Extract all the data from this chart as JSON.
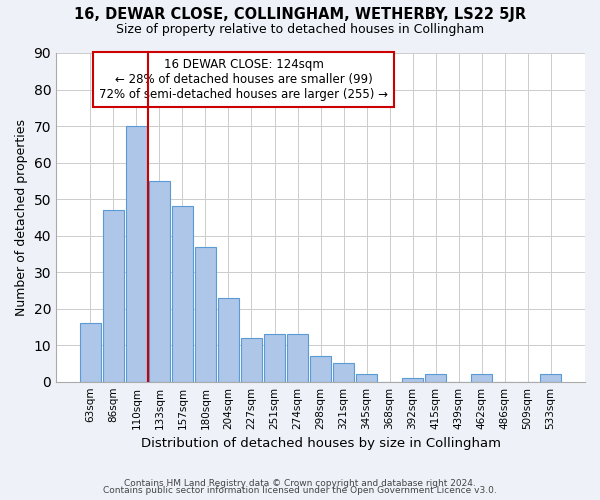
{
  "title": "16, DEWAR CLOSE, COLLINGHAM, WETHERBY, LS22 5JR",
  "subtitle": "Size of property relative to detached houses in Collingham",
  "xlabel": "Distribution of detached houses by size in Collingham",
  "ylabel": "Number of detached properties",
  "footer_line1": "Contains HM Land Registry data © Crown copyright and database right 2024.",
  "footer_line2": "Contains public sector information licensed under the Open Government Licence v3.0.",
  "bar_labels": [
    "63sqm",
    "86sqm",
    "110sqm",
    "133sqm",
    "157sqm",
    "180sqm",
    "204sqm",
    "227sqm",
    "251sqm",
    "274sqm",
    "298sqm",
    "321sqm",
    "345sqm",
    "368sqm",
    "392sqm",
    "415sqm",
    "439sqm",
    "462sqm",
    "486sqm",
    "509sqm",
    "533sqm"
  ],
  "bar_values": [
    16,
    47,
    70,
    55,
    48,
    37,
    23,
    12,
    13,
    13,
    7,
    5,
    2,
    0,
    1,
    2,
    0,
    2,
    0,
    0,
    2
  ],
  "bar_color": "#aec6e8",
  "bar_edge_color": "#5b9bd5",
  "ylim": [
    0,
    90
  ],
  "yticks": [
    0,
    10,
    20,
    30,
    40,
    50,
    60,
    70,
    80,
    90
  ],
  "vline_color": "#cc0000",
  "annotation_title": "16 DEWAR CLOSE: 124sqm",
  "annotation_line2": "← 28% of detached houses are smaller (99)",
  "annotation_line3": "72% of semi-detached houses are larger (255) →",
  "bg_color": "#eef2f8",
  "plot_bg_color": "#ffffff",
  "grid_color": "#cccccc"
}
